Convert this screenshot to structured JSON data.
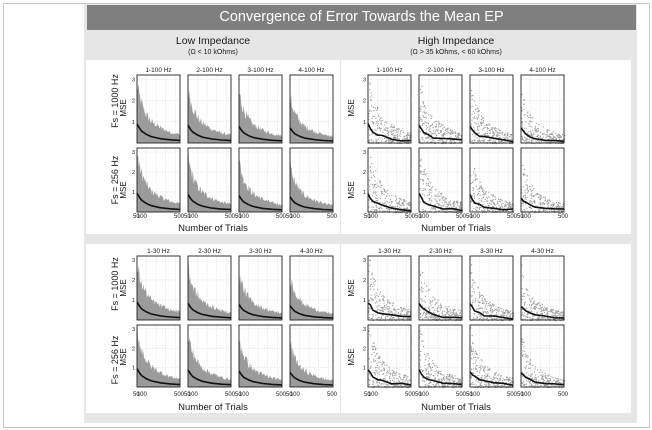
{
  "title": "Convergence of Error Towards the Mean EP",
  "columns": [
    {
      "title": "Low Impedance",
      "subtitle": "(Ω < 10 kOhms)"
    },
    {
      "title": "High Impedance",
      "subtitle": "(Ω > 35 kOhms, < 60 kOhms)"
    }
  ],
  "rows": [
    {
      "top_fs": "Fs = 1000 Hz",
      "bottom_fs": "Fs = 256 Hz"
    },
    {
      "top_fs": "Fs = 1000 Hz",
      "bottom_fs": "Fs = 256 Hz"
    }
  ],
  "colors": {
    "cloud": "#9b9b9b",
    "mean": "#111111",
    "grid": "#bdbdbd",
    "frame": "#222222",
    "panel": "#e6e6e6",
    "title_bar": "#7f7f7f"
  },
  "chart_data": {
    "type": "scatter",
    "ylabel": "MSE",
    "xlabel": "Number of Trials",
    "x_ticks": [
      "50",
      "100",
      "500"
    ],
    "y_ticks": [
      "1",
      "2",
      "3"
    ],
    "xlim": [
      50,
      500
    ],
    "ylim": [
      0,
      3.2
    ],
    "grid": true,
    "quadrants": [
      {
        "column": "Low Impedance",
        "band": "100 Hz",
        "subplot_titles": [
          "1-100 Hz",
          "2-100 Hz",
          "3-100 Hz",
          "4-100 Hz"
        ]
      },
      {
        "column": "High Impedance",
        "band": "100 Hz",
        "subplot_titles": [
          "1-100 Hz",
          "2-100 Hz",
          "3-100 Hz",
          "4-100 Hz"
        ]
      },
      {
        "column": "Low Impedance",
        "band": "30 Hz",
        "subplot_titles": [
          "1-30 Hz",
          "2-30 Hz",
          "3-30 Hz",
          "4-30 Hz"
        ]
      },
      {
        "column": "High Impedance",
        "band": "30 Hz",
        "subplot_titles": [
          "1-30 Hz",
          "2-30 Hz",
          "3-30 Hz",
          "4-30 Hz"
        ]
      }
    ],
    "series": [
      {
        "kind": "trial-errors",
        "x": [
          50,
          75,
          100,
          150,
          200,
          300,
          400,
          500
        ],
        "y_upper": [
          2.8,
          2.2,
          1.8,
          1.3,
          1.0,
          0.7,
          0.5,
          0.4
        ]
      },
      {
        "kind": "mean",
        "x": [
          50,
          75,
          100,
          150,
          200,
          300,
          400,
          500
        ],
        "y": [
          0.9,
          0.7,
          0.55,
          0.4,
          0.3,
          0.2,
          0.15,
          0.12
        ]
      }
    ]
  }
}
